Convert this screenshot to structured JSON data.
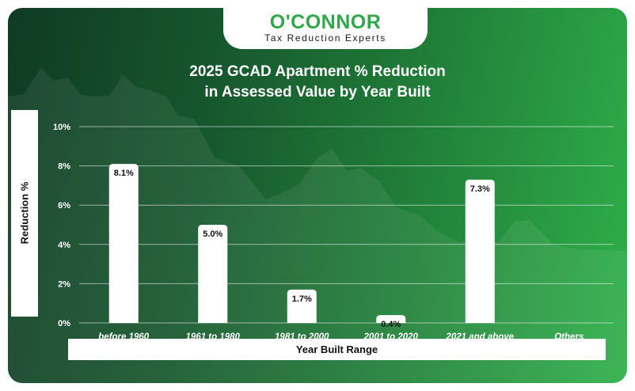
{
  "brand": {
    "name": "O'CONNOR",
    "tagline": "Tax Reduction Experts",
    "color": "#2fa84a"
  },
  "title_line1": "2025 GCAD Apartment % Reduction",
  "title_line2": "in Assessed Value by Year Built",
  "chart_data": {
    "type": "bar",
    "title": "2025 GCAD Apartment % Reduction in Assessed Value by Year Built",
    "xlabel": "Year Built Range",
    "ylabel": "Reduction %",
    "categories": [
      "before 1960",
      "1961 to 1980",
      "1981 to 2000",
      "2001 to 2020",
      "2021 and above",
      "Others"
    ],
    "values": [
      8.1,
      5.0,
      1.7,
      0.4,
      7.3,
      null
    ],
    "data_labels": [
      "8.1%",
      "5.0%",
      "1.7%",
      "0.4%",
      "7.3%",
      ""
    ],
    "y_ticks": [
      0,
      2,
      4,
      6,
      8,
      10
    ],
    "y_tick_labels": [
      "0%",
      "2%",
      "4%",
      "6%",
      "8%",
      "10%"
    ],
    "ylim": [
      0,
      10
    ],
    "grid": true
  }
}
